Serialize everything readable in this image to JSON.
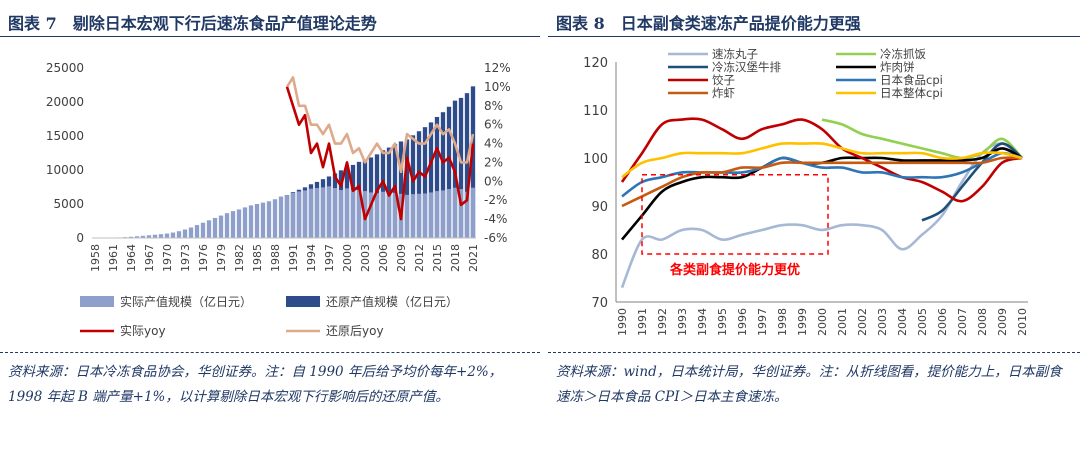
{
  "colors": {
    "title": "#1f3864",
    "light_bar": "#8e9fcb",
    "dark_bar": "#2e4c8c",
    "actual_yoy": "#c00000",
    "restored_yoy": "#dfaa8c",
    "boxed": "#ff0000"
  },
  "left": {
    "title": "图表 7　剔除日本宏观下行后速冻食品产值理论走势",
    "source": "资料来源：日本冷冻食品协会，华创证券。注：自 1990 年后给予均价每年+2%，1998 年起 B 端产量+1%，以计算剔除日本宏观下行影响后的还原产值。",
    "legend": [
      "实际产值规模（亿日元）",
      "还原产值规模（亿日元）",
      "实际yoy",
      "还原后yoy"
    ]
  },
  "right": {
    "title": "图表 8　日本副食类速冻产品提价能力更强",
    "source": "资料来源：wind，日本统计局，华创证券。注：从折线图看，提价能力上，日本副食速冻＞日本食品 CPI＞日本主食速冻。",
    "annotation": "各类副食提价能力更优",
    "legend": [
      "速冻丸子",
      "冷冻抓饭",
      "冷冻汉堡牛排",
      "炸肉饼",
      "饺子",
      "日本食品cpi",
      "炸虾",
      "日本整体cpi"
    ]
  },
  "chart_data": [
    {
      "type": "bar",
      "title": "剔除日本宏观下行后速冻食品产值理论走势",
      "categories": [
        "1958",
        "1959",
        "1960",
        "1961",
        "1962",
        "1963",
        "1964",
        "1965",
        "1966",
        "1967",
        "1968",
        "1969",
        "1970",
        "1971",
        "1972",
        "1973",
        "1974",
        "1975",
        "1976",
        "1977",
        "1978",
        "1979",
        "1980",
        "1981",
        "1982",
        "1983",
        "1984",
        "1985",
        "1986",
        "1987",
        "1988",
        "1989",
        "1990",
        "1991",
        "1992",
        "1993",
        "1994",
        "1995",
        "1996",
        "1997",
        "1998",
        "1999",
        "2000",
        "2001",
        "2002",
        "2003",
        "2004",
        "2005",
        "2006",
        "2007",
        "2008",
        "2009",
        "2010",
        "2011",
        "2012",
        "2013",
        "2014",
        "2015",
        "2016",
        "2017",
        "2018",
        "2019",
        "2020",
        "2021"
      ],
      "x_tick_labels": [
        "1958",
        "1961",
        "1964",
        "1967",
        "1970",
        "1973",
        "1976",
        "1979",
        "1982",
        "1985",
        "1988",
        "1991",
        "1994",
        "1997",
        "2000",
        "2003",
        "2006",
        "2009",
        "2012",
        "2015",
        "2018",
        "2021"
      ],
      "ylim_left": [
        0,
        25000
      ],
      "yticks_left": [
        "0",
        "5000",
        "10000",
        "15000",
        "20000",
        "25000"
      ],
      "ylim_right": [
        -6,
        12
      ],
      "yticks_right": [
        "-6%",
        "-4%",
        "-2%",
        "0%",
        "2%",
        "4%",
        "6%",
        "8%",
        "10%",
        "12%"
      ],
      "series": [
        {
          "name": "实际产值规模（亿日元）",
          "kind": "bar",
          "axis": "left",
          "values": [
            5,
            15,
            30,
            50,
            80,
            120,
            180,
            250,
            320,
            400,
            480,
            560,
            650,
            800,
            1000,
            1250,
            1550,
            1900,
            2250,
            2600,
            2950,
            3300,
            3650,
            3950,
            4200,
            4500,
            4800,
            5000,
            5200,
            5400,
            5700,
            6100,
            6300,
            6650,
            6850,
            7000,
            7250,
            7350,
            7450,
            7600,
            7350,
            7050,
            7300,
            7100,
            7050,
            6900,
            6700,
            6600,
            6800,
            6550,
            6650,
            6500,
            6350,
            6450,
            6500,
            6550,
            6700,
            6900,
            7000,
            7200,
            7400,
            7200,
            6800,
            7400
          ]
        },
        {
          "name": "还原产值规模（亿日元）",
          "kind": "bar",
          "axis": "left",
          "values": [
            0,
            0,
            0,
            0,
            0,
            0,
            0,
            0,
            0,
            0,
            0,
            0,
            0,
            0,
            0,
            0,
            0,
            0,
            0,
            0,
            0,
            0,
            0,
            0,
            0,
            0,
            0,
            0,
            0,
            0,
            0,
            0,
            6300,
            6750,
            7100,
            7450,
            7900,
            8250,
            8650,
            9050,
            9500,
            9950,
            10450,
            10750,
            11200,
            11550,
            11850,
            12300,
            12900,
            13300,
            13800,
            14200,
            14500,
            15100,
            15700,
            16300,
            17000,
            17800,
            18500,
            19300,
            20200,
            20600,
            21300,
            22300
          ]
        },
        {
          "name": "实际yoy",
          "kind": "line",
          "axis": "right",
          "x": [
            "1990",
            "1991",
            "1992",
            "1993",
            "1994",
            "1995",
            "1996",
            "1997",
            "1998",
            "1999",
            "2000",
            "2001",
            "2002",
            "2003",
            "2004",
            "2005",
            "2006",
            "2007",
            "2008",
            "2009",
            "2010",
            "2011",
            "2012",
            "2013",
            "2014",
            "2015",
            "2016",
            "2017",
            "2018",
            "2019",
            "2020",
            "2021"
          ],
          "values": [
            10,
            8,
            6,
            7,
            3,
            4,
            1.5,
            4,
            0.5,
            -0.5,
            2,
            -1,
            -0.5,
            -4,
            -2.5,
            -1,
            0,
            -1.5,
            -0.5,
            -4,
            2.5,
            0,
            1,
            0.5,
            2,
            3.5,
            2,
            2.5,
            1,
            -2.5,
            -2,
            4
          ]
        },
        {
          "name": "还原后yoy",
          "kind": "line",
          "axis": "right",
          "x": [
            "1990",
            "1991",
            "1992",
            "1993",
            "1994",
            "1995",
            "1996",
            "1997",
            "1998",
            "1999",
            "2000",
            "2001",
            "2002",
            "2003",
            "2004",
            "2005",
            "2006",
            "2007",
            "2008",
            "2009",
            "2010",
            "2011",
            "2012",
            "2013",
            "2014",
            "2015",
            "2016",
            "2017",
            "2018",
            "2019",
            "2020",
            "2021"
          ],
          "values": [
            10,
            11,
            8,
            8,
            6,
            6,
            5,
            6,
            4,
            4,
            5,
            3,
            3.5,
            2,
            3,
            4,
            3,
            3,
            4,
            1,
            5,
            4.5,
            4,
            4,
            5,
            6,
            5,
            5.5,
            4,
            2,
            2,
            5
          ]
        }
      ]
    },
    {
      "type": "line",
      "title": "日本副食类速冻产品提价能力更强",
      "x": [
        "1990",
        "1991",
        "1992",
        "1993",
        "1994",
        "1995",
        "1996",
        "1997",
        "1998",
        "1999",
        "2000",
        "2001",
        "2002",
        "2003",
        "2004",
        "2005",
        "2006",
        "2007",
        "2008",
        "2009",
        "2010"
      ],
      "ylim": [
        70,
        120
      ],
      "yticks": [
        "70",
        "80",
        "90",
        "100",
        "110",
        "120"
      ],
      "series": [
        {
          "name": "速冻丸子",
          "color": "#a6b8d4",
          "values": [
            73,
            83,
            83,
            85,
            85,
            83,
            84,
            85,
            86,
            86,
            85,
            86,
            86,
            85,
            81,
            84,
            88,
            95,
            101,
            103,
            100
          ]
        },
        {
          "name": "冷冻抓饭",
          "color": "#92d050",
          "values": [
            null,
            null,
            null,
            null,
            null,
            null,
            null,
            null,
            null,
            null,
            108,
            107,
            105,
            104,
            103,
            102,
            101,
            100,
            101,
            104,
            100
          ]
        },
        {
          "name": "冷冻汉堡牛排",
          "color": "#1f4e79",
          "values": [
            null,
            null,
            null,
            null,
            null,
            null,
            null,
            null,
            null,
            null,
            null,
            null,
            null,
            null,
            null,
            87,
            89,
            94,
            99,
            103,
            100
          ]
        },
        {
          "name": "炸肉饼",
          "color": "#000000",
          "values": [
            83,
            88,
            93,
            95,
            96,
            96,
            96,
            98,
            100,
            99,
            99,
            100,
            100,
            100,
            99.5,
            99.5,
            99.5,
            99.5,
            100,
            102,
            100
          ]
        },
        {
          "name": "饺子",
          "color": "#c00000",
          "values": [
            95,
            101,
            107,
            108,
            108,
            106,
            104,
            106,
            107,
            108,
            106,
            102,
            100,
            98,
            96,
            95,
            93,
            91,
            94,
            99,
            100
          ]
        },
        {
          "name": "日本食品cpi",
          "color": "#2e75b6",
          "values": [
            92,
            95,
            96,
            97,
            97,
            97,
            97,
            98,
            100,
            99,
            98,
            98,
            97,
            97,
            96,
            96,
            96,
            97,
            99,
            101,
            100
          ]
        },
        {
          "name": "炸虾",
          "color": "#c55a11",
          "values": [
            90,
            92,
            94,
            96,
            97,
            97,
            98,
            98,
            99,
            99,
            99,
            99,
            99,
            99,
            99,
            99,
            99,
            99,
            99,
            100,
            100
          ]
        },
        {
          "name": "日本整体cpi",
          "color": "#ffc000",
          "values": [
            96,
            99,
            100,
            101,
            101,
            101,
            101,
            102,
            103,
            103,
            103,
            102,
            101,
            101,
            101,
            101,
            100,
            100,
            101,
            101,
            100
          ]
        }
      ]
    }
  ]
}
